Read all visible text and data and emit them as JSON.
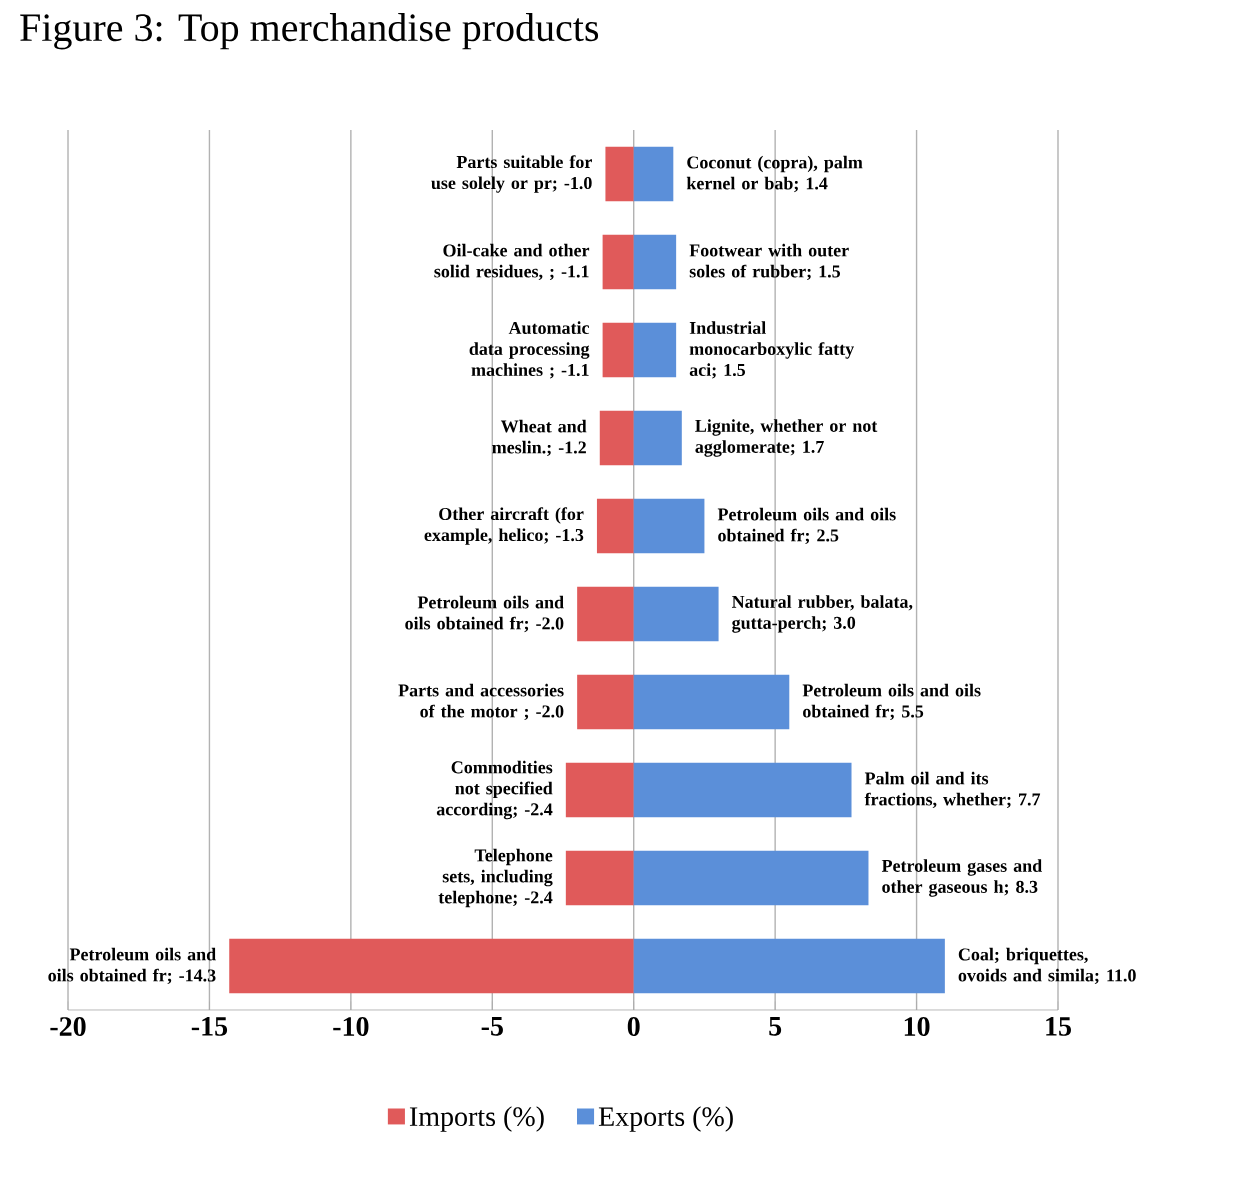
{
  "chart_data": {
    "type": "bar",
    "orientation": "horizontal",
    "title": "Figure 3: Top merchandise products",
    "categories": [
      null,
      null,
      null,
      null,
      null,
      null,
      null,
      null,
      null,
      null
    ],
    "series": [
      {
        "name": "Imports (%)",
        "color": "#e05a5a",
        "values": [
          -1.0,
          -1.1,
          -1.1,
          -1.2,
          -1.3,
          -2.0,
          -2.0,
          -2.4,
          -2.4,
          -14.3
        ],
        "value_labels": [
          "Parts suitable for use solely or pr; -1.0",
          "Oil-cake and other solid residues, ; -1.1",
          "Automatic data processing machines ; -1.1",
          "Wheat and meslin.; -1.2",
          "Other aircraft (for example, helico; -1.3",
          "Petroleum oils and oils obtained fr; -2.0",
          "Parts and accessories of the motor ; -2.0",
          "Commodities not specified according; -2.4",
          "Telephone sets, including telephone; -2.4",
          "Petroleum oils and oils obtained fr; -14.3"
        ]
      },
      {
        "name": "Exports (%)",
        "color": "#5b8fd9",
        "values": [
          1.4,
          1.5,
          1.5,
          1.7,
          2.5,
          3.0,
          5.5,
          7.7,
          8.3,
          11.0
        ],
        "value_labels": [
          "Coconut (copra), palm kernel or bab; 1.4",
          "Footwear with outer soles of rubber; 1.5",
          "Industrial monocarboxylic fatty aci; 1.5",
          "Lignite, whether or not agglomerate; 1.7",
          "Petroleum oils and oils obtained fr; 2.5",
          "Natural rubber, balata, gutta-perch; 3.0",
          "Petroleum oils and oils obtained fr; 5.5",
          "Palm oil and its fractions, whether; 7.7",
          "Petroleum gases and other gaseous h; 8.3",
          "Coal; briquettes, ovoids and simila; 11.0"
        ]
      }
    ],
    "xlim": [
      -20,
      15
    ],
    "xticks": [
      -20,
      -15,
      -10,
      -5,
      0,
      5,
      10,
      15
    ],
    "grid": "x",
    "legend": "bottom",
    "tick_labels": "x",
    "stacked": true
  }
}
